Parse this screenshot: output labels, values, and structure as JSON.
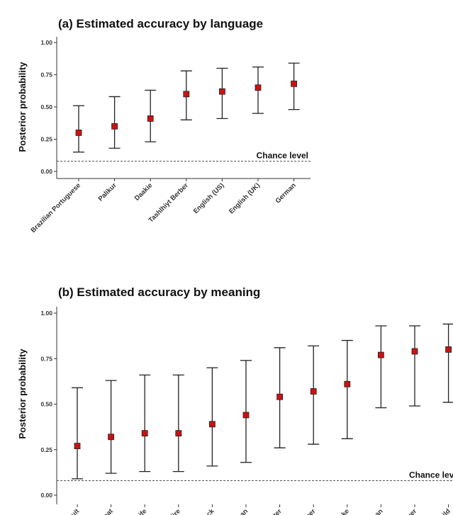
{
  "chart_data": [
    {
      "panel": "a",
      "type": "scatter",
      "title": "(a) Estimated accuracy by language",
      "ylabel": "Posterior probability",
      "ylim": [
        0,
        1
      ],
      "yticks": [
        "0.00",
        "0.25",
        "0.50",
        "0.75",
        "1.00"
      ],
      "categories": [
        "Brazilian Portuguese",
        "Palikur",
        "Daakie",
        "Tashlhiyt Berber",
        "English (US)",
        "English (UK)",
        "German"
      ],
      "values": [
        0.3,
        0.35,
        0.41,
        0.6,
        0.62,
        0.65,
        0.68
      ],
      "lower": [
        0.15,
        0.18,
        0.23,
        0.4,
        0.41,
        0.45,
        0.48
      ],
      "upper": [
        0.51,
        0.58,
        0.63,
        0.78,
        0.8,
        0.81,
        0.84
      ],
      "chance_level": 0.08,
      "chance_label": "Chance level",
      "marker_color": "#cc1111",
      "grid": false
    },
    {
      "panel": "b",
      "type": "scatter",
      "title": "(b) Estimated accuracy by meaning",
      "ylabel": "Posterior probability",
      "ylim": [
        0,
        1
      ],
      "yticks": [
        "0.00",
        "0.25",
        "0.50",
        "0.75",
        "1.00"
      ],
      "categories": [
        "fruit",
        "meat",
        "knife",
        "fire",
        "rock",
        "woman",
        "water",
        "deer",
        "snake",
        "man",
        "tiger",
        "child"
      ],
      "values": [
        0.27,
        0.32,
        0.34,
        0.34,
        0.39,
        0.44,
        0.54,
        0.57,
        0.61,
        0.77,
        0.79,
        0.8
      ],
      "lower": [
        0.09,
        0.12,
        0.13,
        0.13,
        0.16,
        0.18,
        0.26,
        0.28,
        0.31,
        0.48,
        0.49,
        0.51
      ],
      "upper": [
        0.59,
        0.63,
        0.66,
        0.66,
        0.7,
        0.74,
        0.81,
        0.82,
        0.85,
        0.93,
        0.93,
        0.94
      ],
      "chance_level": 0.08,
      "chance_label": "Chance lev",
      "marker_color": "#cc1111",
      "grid": false
    }
  ]
}
